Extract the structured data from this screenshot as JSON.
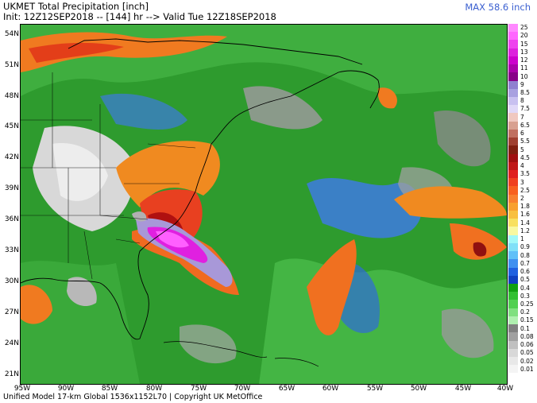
{
  "header": {
    "title": "UKMET Total Precipitation [inch]",
    "subtitle": "Init: 12Z12SEP2018 -- [144] hr --> Valid Tue 12Z18SEP2018",
    "max": "MAX 58.6 inch"
  },
  "footer": "Unified Model 17-km Global 1536x1152L70 | Copyright UK MetOffice",
  "lat_labels": [
    "54N",
    "51N",
    "48N",
    "45N",
    "42N",
    "39N",
    "36N",
    "33N",
    "30N",
    "27N",
    "24N",
    "21N"
  ],
  "lon_labels": [
    "95W",
    "90W",
    "85W",
    "80W",
    "75W",
    "70W",
    "65W",
    "60W",
    "55W",
    "50W",
    "45W",
    "40W"
  ],
  "colorbar": {
    "labels": [
      "25",
      "20",
      "15",
      "13",
      "12",
      "11",
      "10",
      "9",
      "8.5",
      "8",
      "7.5",
      "7",
      "6.5",
      "6",
      "5.5",
      "5",
      "4.5",
      "4",
      "3.5",
      "3",
      "2.5",
      "2",
      "1.8",
      "1.6",
      "1.4",
      "1.2",
      "1",
      "0.9",
      "0.8",
      "0.7",
      "0.6",
      "0.5",
      "0.4",
      "0.3",
      "0.25",
      "0.2",
      "0.15",
      "0.1",
      "0.08",
      "0.06",
      "0.05",
      "0.02",
      "0.01"
    ],
    "colors": [
      "#f8f",
      "#f6f",
      "#e4e",
      "#d2d",
      "#c0c",
      "#a0a",
      "#808",
      "#9080d0",
      "#a8a0e0",
      "#c8c0f0",
      "#e0d8f8",
      "#f0c8c0",
      "#d8a090",
      "#c07060",
      "#a04030",
      "#802010",
      "#a01010",
      "#c01818",
      "#e02020",
      "#f04020",
      "#f86020",
      "#f88030",
      "#f8a030",
      "#f8c040",
      "#f8e060",
      "#f8f8a0",
      "#a0f8f8",
      "#80e0f8",
      "#60c0f8",
      "#4090f0",
      "#2060e0",
      "#1040c0",
      "#10a010",
      "#30c030",
      "#50d050",
      "#80e080",
      "#b0f0b0",
      "#808080",
      "#a0a0a0",
      "#c0c0c0",
      "#d8d8d8",
      "#e8e8e8",
      "#f4f4f4"
    ]
  },
  "map": {
    "max_cell_value": "58.6",
    "features": [
      "precipitation-field",
      "coastline",
      "state-borders",
      "country-borders"
    ]
  }
}
